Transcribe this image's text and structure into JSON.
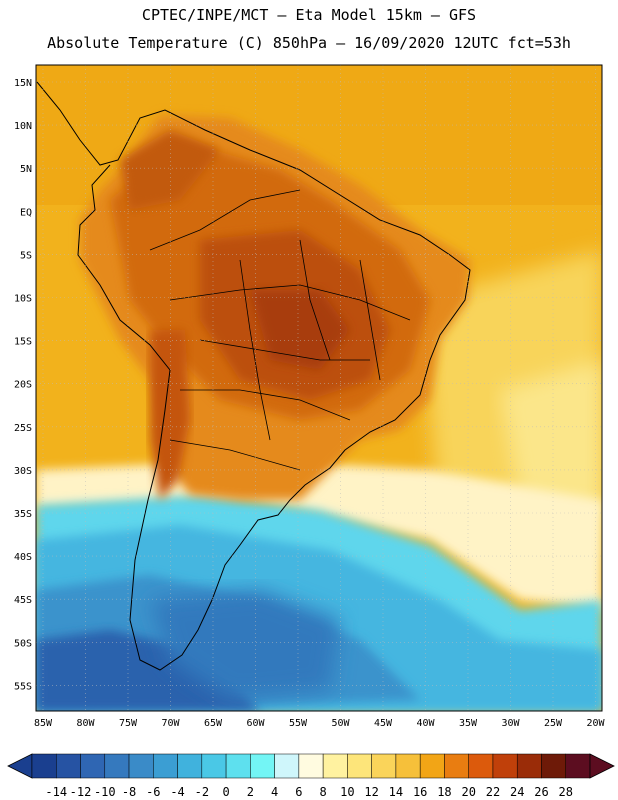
{
  "header": {
    "line1": "CPTEC/INPE/MCT –  Eta Model 15km – GFS",
    "line2": "Absolute Temperature (C) 850hPa – 16/09/2020 12UTC fct=53h"
  },
  "map": {
    "region": "South America",
    "lat_labels": [
      "15N",
      "10N",
      "5N",
      "EQ",
      "5S",
      "10S",
      "15S",
      "20S",
      "25S",
      "30S",
      "35S",
      "40S",
      "45S",
      "50S",
      "55S"
    ],
    "lon_labels": [
      "85W",
      "80W",
      "75W",
      "70W",
      "65W",
      "60W",
      "55W",
      "50W",
      "45W",
      "40W",
      "35W",
      "30W",
      "25W",
      "20W"
    ]
  },
  "colorbar": {
    "labels": [
      "-14",
      "-12",
      "-10",
      "-8",
      "-6",
      "-4",
      "-2",
      "0",
      "2",
      "4",
      "6",
      "8",
      "10",
      "12",
      "14",
      "16",
      "18",
      "20",
      "22",
      "24",
      "26",
      "28"
    ],
    "colors": [
      "#1a3f8f",
      "#2653a3",
      "#2f66b3",
      "#3579be",
      "#3a8bc8",
      "#3b9ed3",
      "#40b2dd",
      "#4ac8e6",
      "#5ee0ee",
      "#73f5f5",
      "#cff6fb",
      "#fffbe0",
      "#fff2a0",
      "#fde57a",
      "#fad45a",
      "#f6c03a",
      "#f2a516",
      "#e97d11",
      "#dc5a0c",
      "#c0400a",
      "#9a2c08",
      "#6e1a08",
      "#5c0d20"
    ]
  },
  "colors": {
    "ocean_warm": "#f2b21c",
    "land_hot": "#c9540c",
    "cold": "#3aa4d8"
  }
}
